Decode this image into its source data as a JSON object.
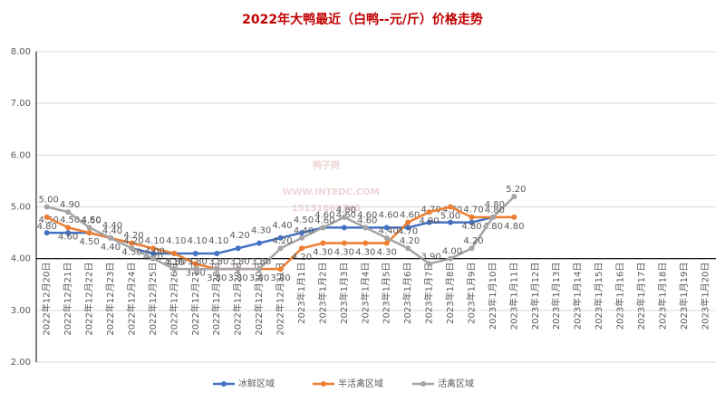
{
  "chart_data": {
    "type": "line",
    "title": "2022年大鸭最近（白鸭--元/斤）价格走势",
    "watermark": [
      "鸭子网",
      "WWW.INTEDC.COM",
      "15131069765"
    ],
    "categories": [
      "2022年12月20日",
      "2022年12月21日",
      "2022年12月22日",
      "2022年12月23日",
      "2022年12月24日",
      "2022年12月25日",
      "2022年12月26日",
      "2022年12月27日",
      "2022年12月28日",
      "2022年12月29日",
      "2022年12月30日",
      "2022年12月31日",
      "2023年1月1日",
      "2023年1月2日",
      "2023年1月3日",
      "2023年1月4日",
      "2023年1月5日",
      "2023年1月6日",
      "2023年1月7日",
      "2023年1月8日",
      "2023年1月9日",
      "2023年1月10日",
      "2023年1月11日",
      "2023年1月12日",
      "2023年1月13日",
      "2023年1月14日",
      "2023年1月15日",
      "2023年1月16日",
      "2023年1月17日",
      "2023年1月18日",
      "2023年1月19日",
      "2023年1月20日"
    ],
    "series": [
      {
        "name": "冰鲜区域",
        "color": "#4472c4",
        "values": [
          4.5,
          4.5,
          4.5,
          4.4,
          4.2,
          4.1,
          4.1,
          4.1,
          4.1,
          4.2,
          4.3,
          4.4,
          4.5,
          4.6,
          4.6,
          4.6,
          4.6,
          4.6,
          4.7,
          4.7,
          4.7,
          4.8,
          null,
          null,
          null,
          null,
          null,
          null,
          null,
          null,
          null,
          null
        ],
        "value_labels": [
          "4.50",
          "4.50",
          "4.50",
          "4.40",
          "4.20",
          "4.10",
          "4.10",
          "4.10",
          "4.10",
          "4.20",
          "4.30",
          "4.40",
          "4.50",
          "4.60",
          "4.60",
          "4.60",
          "4.60",
          "4.60",
          "4.70",
          "4.70",
          "4.70",
          "4.80",
          null,
          null,
          null,
          null,
          null,
          null,
          null,
          null,
          null,
          null
        ]
      },
      {
        "name": "半活禽区域",
        "color": "#ed7d31",
        "values": [
          4.8,
          4.6,
          4.5,
          4.4,
          4.3,
          4.2,
          4.1,
          3.9,
          3.8,
          3.8,
          3.8,
          3.8,
          4.2,
          4.3,
          4.3,
          4.3,
          4.3,
          4.7,
          4.9,
          5.0,
          4.8,
          4.8,
          4.8,
          null,
          null,
          null,
          null,
          null,
          null,
          null,
          null,
          null
        ],
        "value_labels": [
          "4.80",
          "4.60",
          "4.50",
          "4.40",
          "4.30",
          "4.20",
          "4.10",
          "3.90",
          "3.80",
          "3.80",
          "3.80",
          "3.80",
          "4.20",
          "4.30",
          "4.30",
          "4.30",
          "4.30",
          "4.70",
          "4.90",
          "5.00",
          "4.80",
          "4.80",
          "4.80",
          null,
          null,
          null,
          null,
          null,
          null,
          null,
          null,
          null
        ]
      },
      {
        "name": "活禽区域",
        "color": "#a5a5a5",
        "values": [
          5.0,
          4.9,
          4.6,
          4.4,
          4.2,
          4.0,
          3.8,
          3.8,
          3.8,
          3.8,
          3.8,
          4.2,
          4.4,
          4.6,
          4.8,
          4.6,
          4.4,
          4.2,
          3.9,
          4.0,
          4.2,
          4.8,
          5.2,
          null,
          null,
          null,
          null,
          null,
          null,
          null,
          null,
          null
        ],
        "value_labels": [
          "5.00",
          "4.90",
          "4.60",
          "4.40",
          "4.20",
          "4.00",
          "3.80",
          "3.80",
          "3.80",
          "3.80",
          "3.80",
          "4.20",
          "4.40",
          "4.60",
          "4.80",
          "4.60",
          "4.40",
          "4.20",
          "3.90",
          "4.00",
          "4.20",
          "4.80",
          "5.20",
          null,
          null,
          null,
          null,
          null,
          null,
          null,
          null,
          null
        ]
      }
    ],
    "ylim": [
      2,
      8
    ],
    "yticks": [
      {
        "value": 2,
        "label": "2.00"
      },
      {
        "value": 3,
        "label": "3.00"
      },
      {
        "value": 4,
        "label": "4.00"
      },
      {
        "value": 5,
        "label": "5.00"
      },
      {
        "value": 6,
        "label": "6.00"
      },
      {
        "value": 7,
        "label": "7.00"
      },
      {
        "value": 8,
        "label": "8.00"
      }
    ],
    "x_axis_crosses": 4,
    "grid": true,
    "legend": "bottom"
  }
}
